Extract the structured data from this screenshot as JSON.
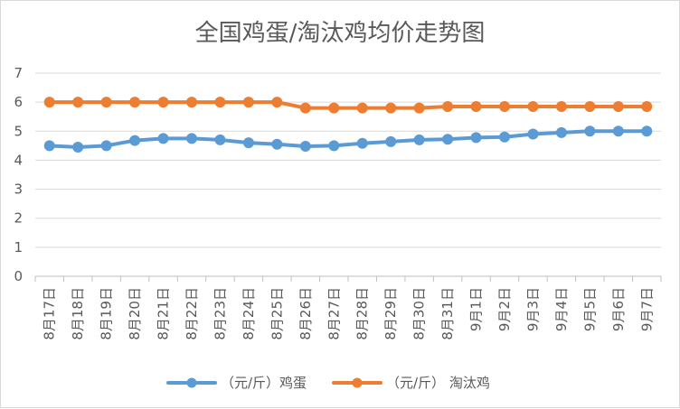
{
  "chart_data": {
    "type": "line",
    "title": "全国鸡蛋/淘汰鸡均价走势图",
    "categories": [
      "8月17日",
      "8月18日",
      "8月19日",
      "8月20日",
      "8月21日",
      "8月22日",
      "8月23日",
      "8月24日",
      "8月25日",
      "8月26日",
      "8月27日",
      "8月28日",
      "8月29日",
      "8月30日",
      "8月31日",
      "9月1日",
      "9月2日",
      "9月3日",
      "9月4日",
      "9月5日",
      "9月6日",
      "9月7日"
    ],
    "series": [
      {
        "name": "（元/斤）鸡蛋",
        "color": "#5b9bd5",
        "values": [
          4.5,
          4.45,
          4.5,
          4.68,
          4.75,
          4.75,
          4.7,
          4.6,
          4.55,
          4.48,
          4.5,
          4.58,
          4.64,
          4.7,
          4.72,
          4.78,
          4.8,
          4.9,
          4.95,
          5.0,
          5.0,
          5.0
        ]
      },
      {
        "name": "（元/斤） 淘汰鸡",
        "color": "#ed7d31",
        "values": [
          6.0,
          6.0,
          6.0,
          6.0,
          6.0,
          6.0,
          6.0,
          6.0,
          6.0,
          5.8,
          5.8,
          5.8,
          5.8,
          5.8,
          5.85,
          5.85,
          5.85,
          5.85,
          5.85,
          5.85,
          5.85,
          5.85
        ]
      }
    ],
    "ylim": [
      0,
      7
    ],
    "yticks": [
      "0",
      "1",
      "2",
      "3",
      "4",
      "5",
      "6",
      "7"
    ],
    "grid": true,
    "legend_position": "bottom"
  }
}
